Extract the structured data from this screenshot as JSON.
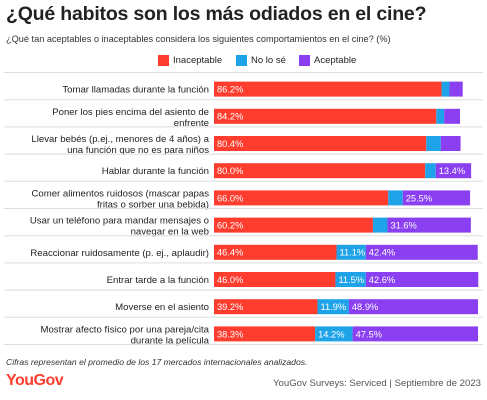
{
  "header": {
    "title": "¿Qué habitos son los más odiados en el cine?",
    "subtitle": "¿Qué tan aceptables o inaceptables considera los siguientes comportamientos en el cine? (%)"
  },
  "legend": [
    {
      "label": "Inaceptable",
      "color": "#ff3d2e"
    },
    {
      "label": "No lo sé",
      "color": "#1fa3e8"
    },
    {
      "label": "Aceptable",
      "color": "#8a3ff0"
    }
  ],
  "chart_data": {
    "type": "bar",
    "orientation": "horizontal",
    "stacked": true,
    "xlim": [
      0,
      100
    ],
    "categories": [
      [
        "Tomar llamadas durante la función"
      ],
      [
        "Poner los pies encima del asiento de",
        "enfrente"
      ],
      [
        "Llevar bebés (p.ej., menores de 4 años) a",
        "una función que no es para niños"
      ],
      [
        "Hablar durante la función"
      ],
      [
        "Comer alimentos ruidosos (mascar papas",
        "fritas o sorber una bebida)"
      ],
      [
        "Usar un teléfono para mandar mensajes o",
        "navegar en la web"
      ],
      [
        "Reaccionar ruidosamente (p. ej., aplaudir)"
      ],
      [
        "Entrar tarde a la función"
      ],
      [
        "Moverse en el asiento"
      ],
      [
        "Mostrar afecto físico por una pareja/cita",
        "durante la película"
      ]
    ],
    "series": [
      {
        "name": "Inaceptable",
        "color": "#ff3d2e",
        "values": [
          86.2,
          84.2,
          80.4,
          80.0,
          66.0,
          60.2,
          46.4,
          46.0,
          39.2,
          38.3
        ],
        "labels": [
          "86.2%",
          "84.2%",
          "80.4%",
          "80.0%",
          "66.0%",
          "60.2%",
          "46.4%",
          "46.0%",
          "39.2%",
          "38.3%"
        ]
      },
      {
        "name": "No lo sé",
        "color": "#1fa3e8",
        "values": [
          3.0,
          3.0,
          5.5,
          4.0,
          5.5,
          5.5,
          11.1,
          11.5,
          11.9,
          14.2
        ],
        "labels": [
          "",
          "",
          "",
          "",
          "",
          "",
          "11.1%",
          "11.5%",
          "11.9%",
          "14.2%"
        ]
      },
      {
        "name": "Aceptable",
        "color": "#8a3ff0",
        "values": [
          5.0,
          6.0,
          7.5,
          13.4,
          25.5,
          31.6,
          42.4,
          42.6,
          48.9,
          47.5
        ],
        "labels": [
          "",
          "",
          "",
          "13.4%",
          "25.5%",
          "31.6%",
          "42.4%",
          "42.6%",
          "48.9%",
          "47.5%"
        ]
      }
    ]
  },
  "footer": {
    "footnote": "Cifras representan el promedio de los 17 mercados internacionales analizados.",
    "brand_you": "You",
    "brand_gov": "Gov",
    "brand_color": "#ff3d2e",
    "source": "YouGov Surveys: Serviced | Septiembre de 2023"
  }
}
